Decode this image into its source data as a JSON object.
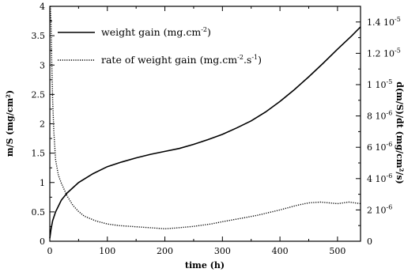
{
  "chart_data": {
    "type": "line",
    "xlabel": "time (h)",
    "ylabel_left": "m/S (mg/cm²)",
    "ylabel_right": "d(m/S)/dt (mg/cm²/s)",
    "xlim": [
      0,
      540
    ],
    "ylim_left": [
      0,
      4
    ],
    "ylim_right": [
      0,
      1.5e-05
    ],
    "x_ticks": [
      "0",
      "100",
      "200",
      "300",
      "400",
      "500"
    ],
    "x_tick_values": [
      0,
      100,
      200,
      300,
      400,
      500
    ],
    "y_left_ticks": [
      "0",
      "0.5",
      "1",
      "1.5",
      "2",
      "2.5",
      "3",
      "3.5",
      "4"
    ],
    "y_left_tick_values": [
      0,
      0.5,
      1,
      1.5,
      2,
      2.5,
      3,
      3.5,
      4
    ],
    "y_right_ticks": [
      {
        "mant": "0",
        "exp": ""
      },
      {
        "mant": "2 10",
        "exp": "-6"
      },
      {
        "mant": "4 10",
        "exp": "-6"
      },
      {
        "mant": "6 10",
        "exp": "-6"
      },
      {
        "mant": "8 10",
        "exp": "-6"
      },
      {
        "mant": "1 10",
        "exp": "-5"
      },
      {
        "mant": "1.2 10",
        "exp": "-5"
      },
      {
        "mant": "1.4 10",
        "exp": "-5"
      }
    ],
    "y_right_tick_values": [
      0,
      2e-06,
      4e-06,
      6e-06,
      8e-06,
      1e-05,
      1.2e-05,
      1.4e-05
    ],
    "legend_position": "top-left",
    "series": [
      {
        "name": "weight gain (mg.cm⁻²)",
        "axis": "left",
        "style": "solid",
        "x": [
          0,
          2,
          5,
          10,
          20,
          30,
          50,
          75,
          100,
          125,
          150,
          175,
          200,
          225,
          250,
          275,
          300,
          325,
          350,
          375,
          400,
          425,
          450,
          475,
          500,
          525,
          540
        ],
        "y": [
          0.05,
          0.2,
          0.35,
          0.5,
          0.7,
          0.82,
          1.0,
          1.15,
          1.27,
          1.35,
          1.42,
          1.48,
          1.53,
          1.58,
          1.65,
          1.73,
          1.82,
          1.93,
          2.05,
          2.2,
          2.38,
          2.58,
          2.8,
          3.03,
          3.27,
          3.5,
          3.65
        ]
      },
      {
        "name": "rate of weight gain (mg.cm⁻².s⁻¹)",
        "axis": "right",
        "style": "dotted",
        "x": [
          1,
          2,
          3,
          5,
          7,
          10,
          15,
          20,
          30,
          40,
          50,
          60,
          80,
          100,
          120,
          140,
          160,
          180,
          200,
          220,
          250,
          280,
          300,
          330,
          360,
          400,
          430,
          450,
          470,
          500,
          520,
          540
        ],
        "y": [
          1.5e-05,
          1.4e-05,
          1.2e-05,
          9e-06,
          7e-06,
          5.2e-06,
          4.2e-06,
          3.7e-06,
          2.9e-06,
          2.3e-06,
          1.9e-06,
          1.6e-06,
          1.3e-06,
          1.1e-06,
          1e-06,
          9.5e-07,
          9e-07,
          8.5e-07,
          8e-07,
          8.5e-07,
          9.5e-07,
          1.1e-06,
          1.25e-06,
          1.45e-06,
          1.65e-06,
          2e-06,
          2.3e-06,
          2.45e-06,
          2.5e-06,
          2.4e-06,
          2.5e-06,
          2.4e-06
        ]
      }
    ],
    "legend": [
      {
        "text": "weight gain (mg.cm",
        "sup": "-2",
        "tail": ")"
      },
      {
        "text": "rate of weight gain (mg.cm",
        "sup": "-2",
        "mid": ".s",
        "sup2": "-1",
        "tail": ")"
      }
    ]
  }
}
